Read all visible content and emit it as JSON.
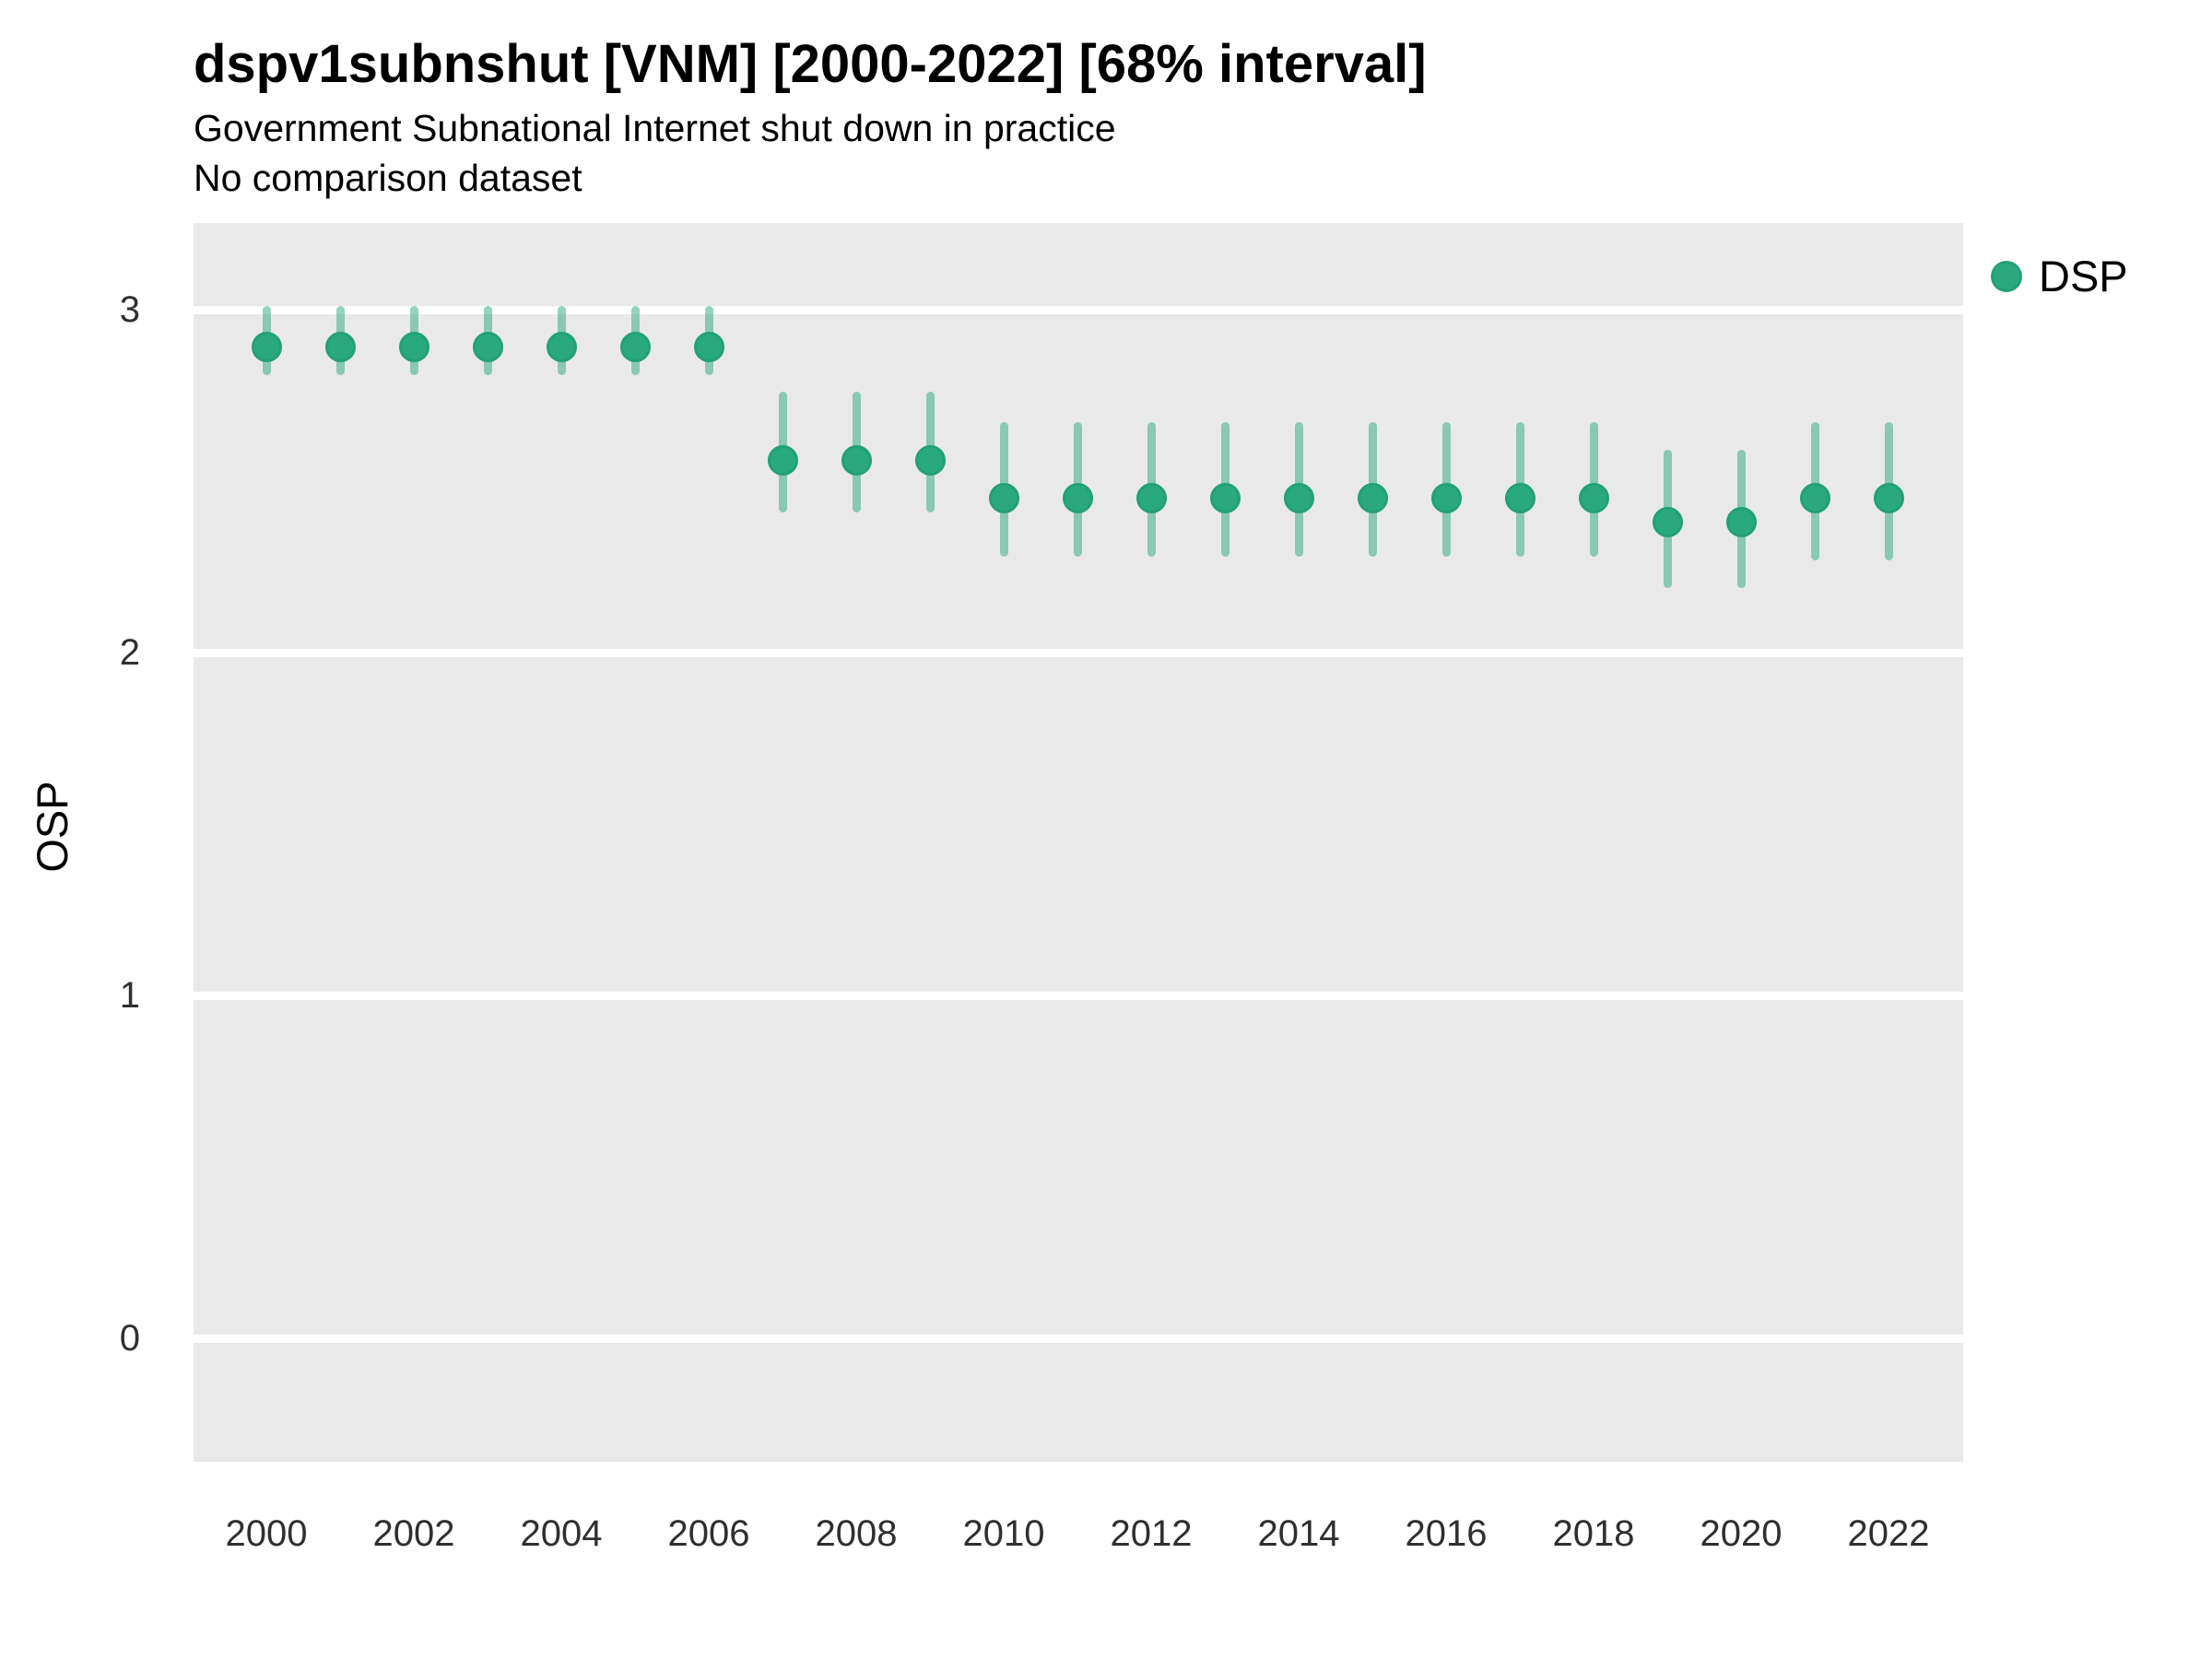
{
  "chart_data": {
    "type": "pointrange",
    "title": "dspv1subnshut [VNM] [2000-2022] [68% interval]",
    "subtitle": "Government Subnational Internet shut down in practice",
    "note": "No comparison dataset",
    "xlabel": "",
    "ylabel": "OSP",
    "interval": "68%",
    "grid": "horizontal-major-only",
    "legend_position": "right",
    "x_ticks": [
      2000,
      2002,
      2004,
      2006,
      2008,
      2010,
      2012,
      2014,
      2016,
      2018,
      2020,
      2022
    ],
    "y_ticks": [
      0,
      1,
      2,
      3
    ],
    "xlim": [
      1999,
      2023
    ],
    "ylim": [
      -0.33,
      3.25
    ],
    "colors": {
      "point_fill": "#2AA97E",
      "point_stroke": "#22A173",
      "interval_color": "rgba(42,168,124,0.5)",
      "panel_bg": "#E9E9E9",
      "grid_color": "#FFFFFF",
      "axis_text_color": "#2F2F2F",
      "text_color": "#000000"
    },
    "series": [
      {
        "name": "DSP",
        "points": [
          {
            "year": 2000,
            "value": 2.89,
            "lo": 2.82,
            "hi": 3.0
          },
          {
            "year": 2001,
            "value": 2.89,
            "lo": 2.82,
            "hi": 3.0
          },
          {
            "year": 2002,
            "value": 2.89,
            "lo": 2.82,
            "hi": 3.0
          },
          {
            "year": 2003,
            "value": 2.89,
            "lo": 2.82,
            "hi": 3.0
          },
          {
            "year": 2004,
            "value": 2.89,
            "lo": 2.82,
            "hi": 3.0
          },
          {
            "year": 2005,
            "value": 2.89,
            "lo": 2.82,
            "hi": 3.0
          },
          {
            "year": 2006,
            "value": 2.89,
            "lo": 2.82,
            "hi": 3.0
          },
          {
            "year": 2007,
            "value": 2.56,
            "lo": 2.42,
            "hi": 2.75
          },
          {
            "year": 2008,
            "value": 2.56,
            "lo": 2.42,
            "hi": 2.75
          },
          {
            "year": 2009,
            "value": 2.56,
            "lo": 2.42,
            "hi": 2.75
          },
          {
            "year": 2010,
            "value": 2.45,
            "lo": 2.29,
            "hi": 2.66
          },
          {
            "year": 2011,
            "value": 2.45,
            "lo": 2.29,
            "hi": 2.66
          },
          {
            "year": 2012,
            "value": 2.45,
            "lo": 2.29,
            "hi": 2.66
          },
          {
            "year": 2013,
            "value": 2.45,
            "lo": 2.29,
            "hi": 2.66
          },
          {
            "year": 2014,
            "value": 2.45,
            "lo": 2.29,
            "hi": 2.66
          },
          {
            "year": 2015,
            "value": 2.45,
            "lo": 2.29,
            "hi": 2.66
          },
          {
            "year": 2016,
            "value": 2.45,
            "lo": 2.29,
            "hi": 2.66
          },
          {
            "year": 2017,
            "value": 2.45,
            "lo": 2.29,
            "hi": 2.66
          },
          {
            "year": 2018,
            "value": 2.45,
            "lo": 2.29,
            "hi": 2.66
          },
          {
            "year": 2019,
            "value": 2.38,
            "lo": 2.2,
            "hi": 2.58
          },
          {
            "year": 2020,
            "value": 2.38,
            "lo": 2.2,
            "hi": 2.58
          },
          {
            "year": 2021,
            "value": 2.45,
            "lo": 2.28,
            "hi": 2.66
          },
          {
            "year": 2022,
            "value": 2.45,
            "lo": 2.28,
            "hi": 2.66
          }
        ]
      }
    ]
  }
}
